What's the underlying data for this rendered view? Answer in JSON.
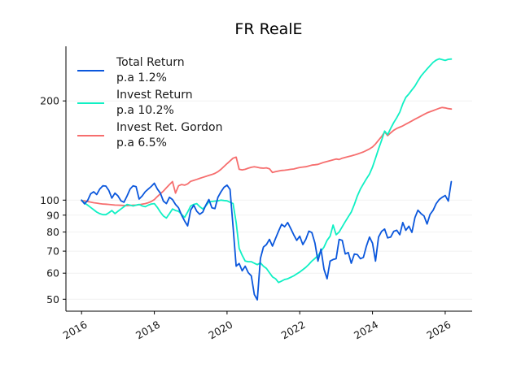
{
  "title": "FR RealE",
  "legend": [
    {
      "line1": "Total Return",
      "line2": "p.a 1.2%",
      "color": "#0b57dc"
    },
    {
      "line1": "Invest Return",
      "line2": "p.a 10.2%",
      "color": "#10f0c4"
    },
    {
      "line1": "Invest Ret. Gordon",
      "line2": "p.a 6.5%",
      "color": "#f66e6e"
    }
  ],
  "chart_data": {
    "type": "line",
    "title": "FR RealE",
    "legend_position": "upper left",
    "grid": "faint horizontal lines at y ticks",
    "x_axis": {
      "ticks": [
        2016,
        2018,
        2020,
        2022,
        2024,
        2026
      ],
      "tick_labels": [
        "2016",
        "2018",
        "2020",
        "2022",
        "2024",
        "2026"
      ],
      "tick_label_rotation_deg": 30,
      "range": [
        2015.57,
        2026.74
      ]
    },
    "y_axis": {
      "scale": "log",
      "ticks": [
        50,
        60,
        70,
        80,
        90,
        100,
        200
      ],
      "tick_labels": [
        "50",
        "60",
        "70",
        "80",
        "90",
        "100",
        "200"
      ],
      "range": [
        46,
        293
      ]
    },
    "x_start": 2016,
    "x_step_years": 0.0833333,
    "series": [
      {
        "name": "Total Return p.a 1.2%",
        "color": "#0b57dc",
        "values": [
          100,
          97.4,
          99.8,
          104.5,
          106,
          104,
          108,
          110.5,
          110.3,
          107,
          101.4,
          105,
          103,
          99.5,
          98.5,
          103,
          108,
          110.5,
          109.8,
          100.7,
          103,
          106,
          108,
          110,
          112.5,
          108,
          105,
          99.3,
          97.6,
          102,
          100.4,
          97,
          94.8,
          90,
          86.4,
          83.5,
          93.2,
          96.5,
          92.5,
          90.6,
          92,
          96.5,
          100.4,
          94.8,
          94.2,
          102,
          106,
          109.4,
          111,
          107.7,
          83,
          63,
          64.2,
          61,
          63,
          60.2,
          58.9,
          51.7,
          49.8,
          66.5,
          72,
          73.3,
          76,
          72.5,
          76.5,
          80.5,
          84.4,
          83,
          85.5,
          82,
          78.5,
          75.5,
          77.7,
          73.3,
          76,
          80.5,
          79.7,
          74,
          65.3,
          71,
          61.7,
          57.7,
          65.3,
          66,
          66.4,
          76,
          75.5,
          68.6,
          69.3,
          64.3,
          68.6,
          68.3,
          66.4,
          67,
          72.5,
          77.2,
          74,
          65.3,
          77.2,
          80.4,
          81.7,
          76.8,
          77.2,
          80.4,
          81,
          78.5,
          85.5,
          81,
          83.3,
          79.8,
          88.5,
          93.2,
          91,
          89.5,
          84.6,
          90.5,
          93.2,
          97.6,
          100.4,
          102,
          103.3,
          99.3,
          113.8
        ]
      },
      {
        "name": "Invest Return p.a 10.2%",
        "color": "#10f0c4",
        "values": [
          100,
          98,
          96.5,
          95,
          93.5,
          92,
          91,
          90.3,
          90.3,
          91.5,
          93,
          91,
          92.5,
          94,
          95.5,
          97,
          96.5,
          96,
          96.5,
          97,
          96,
          95.5,
          96.5,
          97.3,
          97.6,
          95,
          92,
          89.5,
          88.2,
          91,
          94,
          93,
          92.5,
          90.5,
          88.6,
          92,
          95.9,
          97,
          97.6,
          95.5,
          94,
          96,
          98.8,
          99,
          99.3,
          99.5,
          100,
          99.7,
          99.5,
          98.5,
          97.6,
          85.5,
          71.3,
          68,
          65.3,
          65,
          65,
          64.3,
          63.7,
          64.5,
          63,
          62,
          60.2,
          58.5,
          57.7,
          56.2,
          56.8,
          57.4,
          57.7,
          58.3,
          58.9,
          59.7,
          60.5,
          61.5,
          62.5,
          63.8,
          65.3,
          66.5,
          67.8,
          70,
          72,
          75.5,
          77.7,
          84,
          78.5,
          80,
          83,
          86,
          89,
          92,
          97,
          103,
          108,
          112,
          116,
          120,
          126,
          134,
          143,
          152,
          162,
          158,
          165,
          172,
          178,
          185,
          196,
          205,
          210,
          216,
          222,
          230,
          238,
          244,
          250,
          256,
          262,
          266,
          268.5,
          267,
          265.5,
          267.5,
          268
        ]
      },
      {
        "name": "Invest Ret. Gordon p.a 6.5%",
        "color": "#f66e6e",
        "values": [
          99.5,
          99.5,
          99,
          98.6,
          98.2,
          97.9,
          97.6,
          97.3,
          97.2,
          97,
          96.8,
          96.6,
          96.5,
          96.4,
          96.3,
          96.2,
          96.3,
          96.5,
          96.6,
          96.8,
          97.2,
          97.6,
          98.2,
          99,
          100.4,
          102.5,
          104.5,
          106.5,
          109,
          111.5,
          113.8,
          105,
          110.5,
          111.5,
          111,
          112,
          114,
          114.8,
          115.6,
          116.4,
          117.2,
          118,
          118.8,
          119.6,
          120.5,
          122,
          124,
          126.5,
          129,
          131.5,
          134,
          135,
          124,
          123.5,
          124,
          125,
          125.8,
          126.3,
          125.8,
          125.2,
          125,
          125.3,
          124.5,
          121.3,
          122,
          122.5,
          123,
          123.2,
          123.6,
          124,
          124.3,
          125,
          125.6,
          126,
          126.3,
          127,
          127.7,
          128,
          128.4,
          129.3,
          130.3,
          131,
          131.8,
          132.5,
          133.3,
          132.8,
          134,
          134.8,
          135.5,
          136.2,
          137,
          138,
          139,
          140,
          141.5,
          143,
          145,
          148,
          152,
          156,
          161,
          157,
          160,
          163,
          165,
          166.5,
          168,
          170,
          172,
          174,
          176,
          178,
          180,
          182,
          184,
          185.5,
          187,
          188.5,
          190,
          191,
          190.5,
          189.5,
          189
        ]
      }
    ]
  }
}
